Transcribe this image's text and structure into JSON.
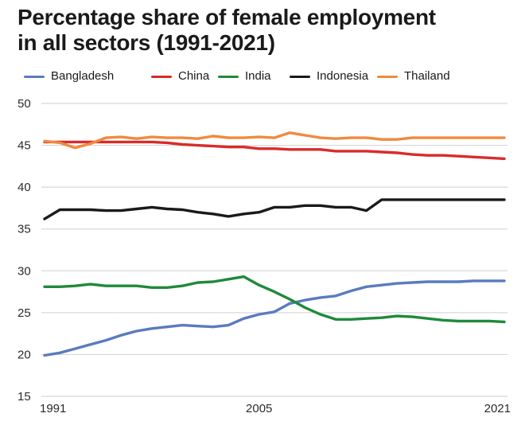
{
  "title_line1": "Percentage share of female employment",
  "title_line2": "in all sectors (1991-2021)",
  "chart_data": {
    "type": "line",
    "title": "Percentage share of female employment in all sectors (1991-2021)",
    "xlabel": "",
    "ylabel": "",
    "x": [
      1991,
      1992,
      1993,
      1994,
      1995,
      1996,
      1997,
      1998,
      1999,
      2000,
      2001,
      2002,
      2003,
      2004,
      2005,
      2006,
      2007,
      2008,
      2009,
      2010,
      2011,
      2012,
      2013,
      2014,
      2015,
      2016,
      2017,
      2018,
      2019,
      2020,
      2021
    ],
    "x_tick_labels": [
      "1991",
      "2005",
      "2021"
    ],
    "x_tick_values": [
      1991,
      2005,
      2021
    ],
    "y_ticks": [
      15,
      20,
      25,
      30,
      35,
      40,
      45,
      50
    ],
    "ylim": [
      15,
      50
    ],
    "xlim": [
      1991,
      2021
    ],
    "grid": "horizontal",
    "legend_position": "top",
    "series": [
      {
        "name": "Bangladesh",
        "color": "#5a7bbf",
        "values": [
          19.9,
          20.2,
          20.7,
          21.2,
          21.7,
          22.3,
          22.8,
          23.1,
          23.3,
          23.5,
          23.4,
          23.3,
          23.5,
          24.3,
          24.8,
          25.1,
          26.1,
          26.5,
          26.8,
          27.0,
          27.6,
          28.1,
          28.3,
          28.5,
          28.6,
          28.7,
          28.7,
          28.7,
          28.8,
          28.8,
          28.8
        ]
      },
      {
        "name": "China",
        "color": "#d92b2b",
        "values": [
          45.4,
          45.4,
          45.4,
          45.4,
          45.4,
          45.4,
          45.4,
          45.4,
          45.3,
          45.1,
          45.0,
          44.9,
          44.8,
          44.8,
          44.6,
          44.6,
          44.5,
          44.5,
          44.5,
          44.3,
          44.3,
          44.3,
          44.2,
          44.1,
          43.9,
          43.8,
          43.8,
          43.7,
          43.6,
          43.5,
          43.4
        ]
      },
      {
        "name": "India",
        "color": "#1f8a3a",
        "values": [
          28.1,
          28.1,
          28.2,
          28.4,
          28.2,
          28.2,
          28.2,
          28.0,
          28.0,
          28.2,
          28.6,
          28.7,
          29.0,
          29.3,
          28.3,
          27.5,
          26.6,
          25.6,
          24.8,
          24.2,
          24.2,
          24.3,
          24.4,
          24.6,
          24.5,
          24.3,
          24.1,
          24.0,
          24.0,
          24.0,
          23.9
        ]
      },
      {
        "name": "Indonesia",
        "color": "#1a1a1a",
        "values": [
          36.2,
          37.3,
          37.3,
          37.3,
          37.2,
          37.2,
          37.4,
          37.6,
          37.4,
          37.3,
          37.0,
          36.8,
          36.5,
          36.8,
          37.0,
          37.6,
          37.6,
          37.8,
          37.8,
          37.6,
          37.6,
          37.2,
          38.5,
          38.5,
          38.5,
          38.5,
          38.5,
          38.5,
          38.5,
          38.5,
          38.5
        ]
      },
      {
        "name": "Thailand",
        "color": "#f08a3e",
        "values": [
          45.5,
          45.3,
          44.7,
          45.2,
          45.9,
          46.0,
          45.8,
          46.0,
          45.9,
          45.9,
          45.8,
          46.1,
          45.9,
          45.9,
          46.0,
          45.9,
          46.5,
          46.2,
          45.9,
          45.8,
          45.9,
          45.9,
          45.7,
          45.7,
          45.9,
          45.9,
          45.9,
          45.9,
          45.9,
          45.9,
          45.9
        ]
      }
    ]
  }
}
